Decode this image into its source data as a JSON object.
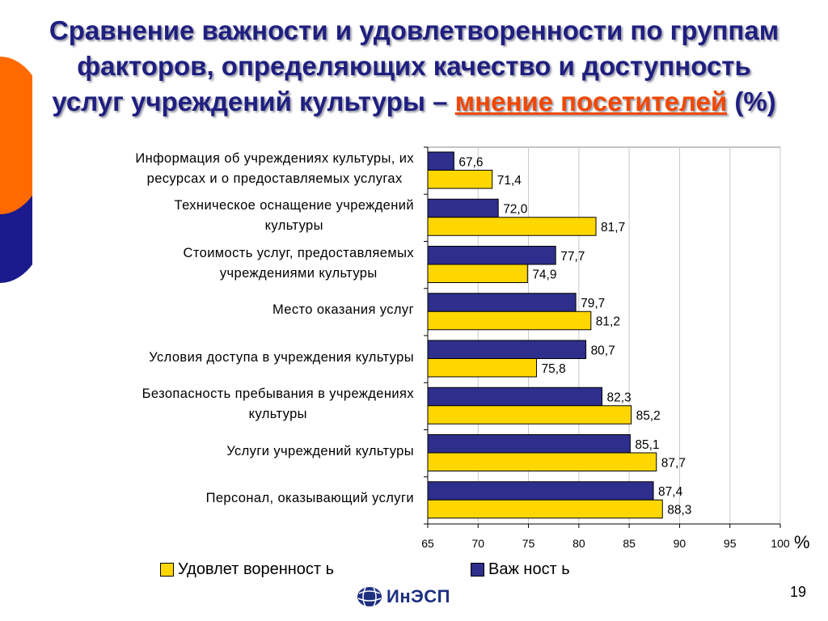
{
  "title": {
    "line1": "Сравнение важности и удовлетворенности по группам",
    "line2": "факторов, определяющих качество и доступность",
    "line3_prefix": "услуг учреждений культуры – ",
    "line3_highlight": "мнение посетителей",
    "line3_suffix": " (%)"
  },
  "colors": {
    "importance": "#2e2e8c",
    "satisfaction": "#ffd700",
    "title": "#1f1f80",
    "highlight": "#f04800",
    "deco_orange": "#ff6a00",
    "deco_blue": "#1a1a8c"
  },
  "chart_data": {
    "type": "bar",
    "orientation": "horizontal",
    "categories": [
      [
        "Информация об учреждениях культуры, их",
        "ресурсах и о предоставляемых услугах"
      ],
      [
        "Техническое оснащение учреждений",
        "культуры"
      ],
      [
        "Стоимость услуг, предоставляемых",
        "учреждениями культуры"
      ],
      [
        "Место оказания услуг"
      ],
      [
        "Условия доступа в учреждения культуры"
      ],
      [
        "Безопасность пребывания в учреждениях",
        "культуры"
      ],
      [
        "Услуги учреждений культуры"
      ],
      [
        "Персонал, оказывающий услуги"
      ]
    ],
    "series": [
      {
        "name": "Важность",
        "values": [
          67.6,
          72.0,
          77.7,
          79.7,
          80.7,
          82.3,
          85.1,
          87.4
        ],
        "labels": [
          "67,6",
          "72,0",
          "77,7",
          "79,7",
          "80,7",
          "82,3",
          "85,1",
          "87,4"
        ]
      },
      {
        "name": "Удовлетворенность",
        "values": [
          71.4,
          81.7,
          74.9,
          81.2,
          75.8,
          85.2,
          87.7,
          88.3
        ],
        "labels": [
          "71,4",
          "81,7",
          "74,9",
          "81,2",
          "75,8",
          "85,2",
          "87,7",
          "88,3"
        ]
      }
    ],
    "xlim": [
      65,
      100
    ],
    "xticks": [
      65,
      70,
      75,
      80,
      85,
      90,
      95,
      100
    ],
    "xlabel": "%",
    "grid": "vertical",
    "legend_position": "bottom"
  },
  "legend": {
    "satisfaction_label": "Удовлет воренност ь",
    "importance_label": "Важ ност ь"
  },
  "unit": "%",
  "slide_number": "19",
  "logo_text": "ИнЭСП"
}
